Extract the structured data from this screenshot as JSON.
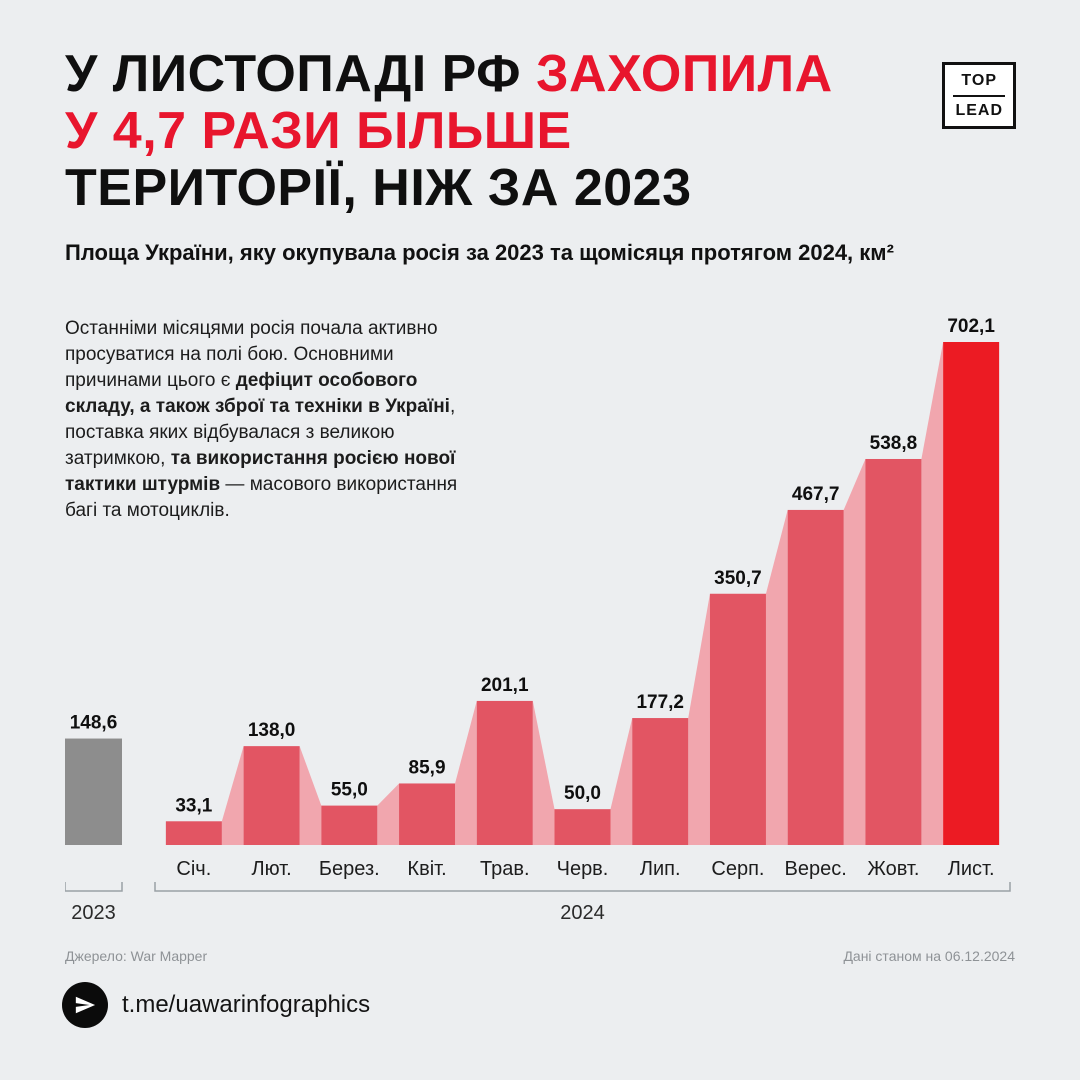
{
  "title": {
    "part1_black": "У ЛИСТОПАДІ РФ ",
    "part2_red": "ЗАХОПИЛА",
    "line2_red": "У 4,7 РАЗИ БІЛЬШЕ",
    "line3_black": "ТЕРИТОРІЇ, НІЖ ЗА 2023"
  },
  "logo": {
    "top": "TOP",
    "bottom": "LEAD"
  },
  "lede": {
    "segments": [
      {
        "text": "Останніми місяцями росія почала активно просуватися на полі бою. Основними причинами цього є ",
        "bold": false
      },
      {
        "text": "дефіцит особового складу, а також зброї та техніки в Україні",
        "bold": true
      },
      {
        "text": ", поставка яких відбувалася з великою затримкою, ",
        "bold": false
      },
      {
        "text": "та використання росією нової тактики штурмів",
        "bold": true
      },
      {
        "text": " — масового використання багі та мотоциклів.",
        "bold": false
      }
    ]
  },
  "chart_data": {
    "type": "bar",
    "title": "Площа України, яку окупувала росія за 2023 та щомісяця протягом 2024, км²",
    "baseline_year_bar": {
      "label": "2023",
      "value": 148.6,
      "value_label": "148,6"
    },
    "categories": [
      "Січ.",
      "Лют.",
      "Берез.",
      "Квіт.",
      "Трав.",
      "Черв.",
      "Лип.",
      "Серп.",
      "Верес.",
      "Жовт.",
      "Лист."
    ],
    "values": [
      33.1,
      138.0,
      55.0,
      85.9,
      201.1,
      50.0,
      177.2,
      350.7,
      467.7,
      538.8,
      702.1
    ],
    "value_labels": [
      "33,1",
      "138,0",
      "55,0",
      "85,9",
      "201,1",
      "50,0",
      "177,2",
      "350,7",
      "467,7",
      "538,8",
      "702,1"
    ],
    "highlight_index": 10,
    "group_labels": {
      "left": "2023",
      "right": "2024"
    },
    "colors": {
      "bar": "#E25563",
      "connector": "#F1A6AE",
      "highlight": "#EC1B23",
      "baseline_bar": "#8D8D8D",
      "axis": "#9aa0a5"
    },
    "legend_position": "none",
    "grid": false,
    "ylim": [
      0,
      702.1
    ]
  },
  "source": {
    "left": "Джерело: War Mapper",
    "right": "Дані станом на 06.12.2024"
  },
  "footer": {
    "handle": "t.me/uawarinfographics"
  }
}
